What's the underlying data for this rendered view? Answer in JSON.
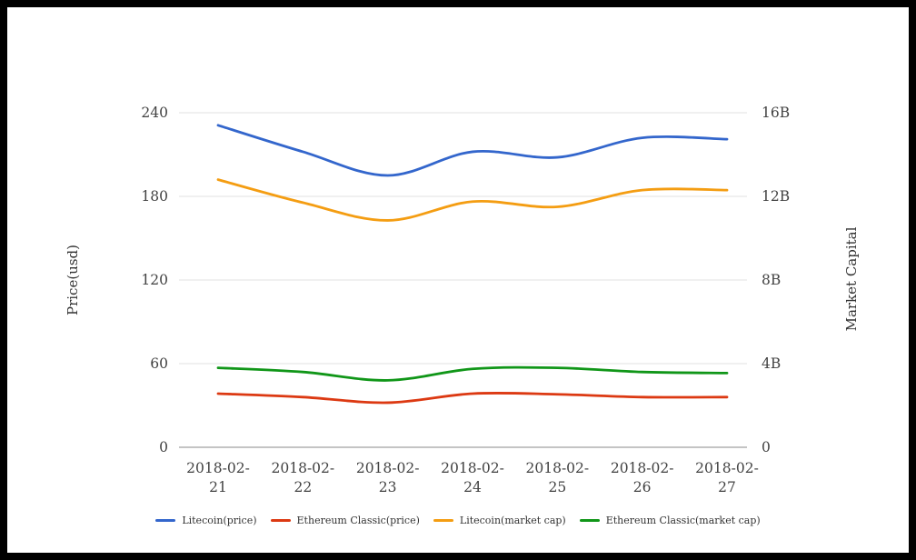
{
  "chart_data": {
    "type": "line",
    "title": "",
    "categories": [
      "2018-02-21",
      "2018-02-22",
      "2018-02-23",
      "2018-02-24",
      "2018-02-25",
      "2018-02-26",
      "2018-02-27"
    ],
    "series": [
      {
        "name": "Litecoin(price)",
        "axis": "price",
        "color": "#3366cc",
        "values": [
          231,
          212,
          195,
          212,
          208,
          222,
          221
        ]
      },
      {
        "name": "Ethereum Classic(price)",
        "axis": "market_cap_scaled_note",
        "color": "#dc3912",
        "values": [
          38.5,
          36,
          32,
          38.5,
          38,
          36,
          36
        ],
        "axis_actual": "price"
      },
      {
        "name": "Litecoin(market cap)",
        "axis": "market_cap",
        "color": "#f49d12",
        "values": [
          12.8,
          11.7,
          10.85,
          11.75,
          11.5,
          12.3,
          12.3
        ]
      },
      {
        "name": "Ethereum Classic(market cap)",
        "axis": "market_cap",
        "color": "#109618",
        "values": [
          3.8,
          3.6,
          3.2,
          3.75,
          3.8,
          3.6,
          3.55
        ]
      }
    ],
    "y_axis_left": {
      "label": "Price(usd)",
      "min": 0,
      "max": 240,
      "ticks": [
        "0",
        "60",
        "120",
        "180",
        "240"
      ]
    },
    "y_axis_right": {
      "label": "Market Capital",
      "min": 0,
      "max": 16,
      "ticks": [
        "0",
        "4B",
        "8B",
        "12B",
        "16B"
      ]
    },
    "grid": true,
    "legend_position": "bottom",
    "colors": {
      "gridline": "#e0e0e0",
      "axis_line": "#8a8a8a",
      "tick_text": "#424242"
    }
  }
}
